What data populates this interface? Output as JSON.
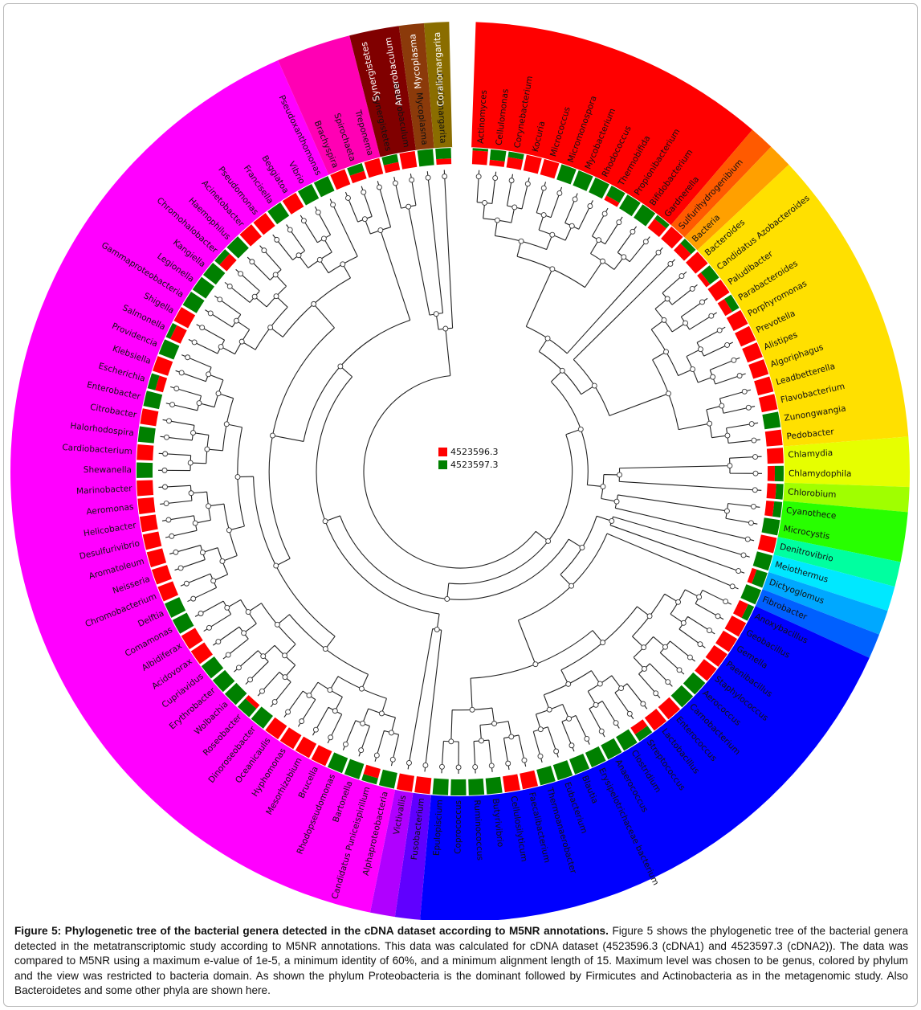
{
  "legend": [
    {
      "id": "4523596.3",
      "color": "#ff0000"
    },
    {
      "id": "4523597.3",
      "color": "#008000"
    }
  ],
  "phyla": [
    {
      "color": "#ff0000",
      "labels": []
    },
    {
      "color": "#ff5a00",
      "labels": []
    },
    {
      "color": "#ffa000",
      "labels": []
    },
    {
      "color": "#ffe000",
      "labels": []
    },
    {
      "color": "#e6ff00",
      "labels": []
    },
    {
      "color": "#a0ff00",
      "labels": []
    },
    {
      "color": "#28ff00",
      "labels": []
    },
    {
      "color": "#00ffa0",
      "labels": []
    },
    {
      "color": "#00e8ff",
      "labels": []
    },
    {
      "color": "#00a8ff",
      "labels": []
    },
    {
      "color": "#0060ff",
      "labels": []
    },
    {
      "color": "#0000ff",
      "labels": []
    },
    {
      "color": "#6000ff",
      "labels": []
    },
    {
      "color": "#b000ff",
      "labels": []
    },
    {
      "color": "#ff00ff",
      "labels": []
    },
    {
      "color": "#ff00b4",
      "labels": []
    },
    {
      "color": "#800000",
      "labels": [
        "Synergistetes",
        "Anaerobaculum"
      ]
    },
    {
      "color": "#8b3a0a",
      "labels": [
        "Mycoplasma"
      ]
    },
    {
      "color": "#8a6d00",
      "labels": [
        "Coraliomargarita"
      ]
    }
  ],
  "genera": [
    {
      "name": "Actinomyces",
      "phylum": 0,
      "s1": 0.85,
      "s2": 0.15
    },
    {
      "name": "Cellulomonas",
      "phylum": 0,
      "s1": 0.35,
      "s2": 0.65
    },
    {
      "name": "Corynebacterium",
      "phylum": 0,
      "s1": 0.65,
      "s2": 0.35
    },
    {
      "name": "Kocuria",
      "phylum": 0,
      "s1": 1.0,
      "s2": 0.0
    },
    {
      "name": "Micrococcus",
      "phylum": 0,
      "s1": 1.0,
      "s2": 0.0
    },
    {
      "name": "Micromonospora",
      "phylum": 0,
      "s1": 0.0,
      "s2": 1.0
    },
    {
      "name": "Mycobacterium",
      "phylum": 0,
      "s1": 0.0,
      "s2": 1.0
    },
    {
      "name": "Rhodococcus",
      "phylum": 0,
      "s1": 0.0,
      "s2": 1.0
    },
    {
      "name": "Thermobifida",
      "phylum": 0,
      "s1": 0.3,
      "s2": 0.7
    },
    {
      "name": "Propionibacterium",
      "phylum": 0,
      "s1": 0.0,
      "s2": 1.0
    },
    {
      "name": "Bifidobacterium",
      "phylum": 0,
      "s1": 0.0,
      "s2": 1.0
    },
    {
      "name": "Gardnerella",
      "phylum": 0,
      "s1": 0.7,
      "s2": 0.3
    },
    {
      "name": "Sulfurihydrogenibium",
      "phylum": 1,
      "s1": 1.0,
      "s2": 0.0
    },
    {
      "name": "Bacteria",
      "phylum": 2,
      "s1": 0.6,
      "s2": 0.4
    },
    {
      "name": "Bacteroides",
      "phylum": 3,
      "s1": 1.0,
      "s2": 0.0
    },
    {
      "name": "Candidatus Azobacteroides",
      "phylum": 3,
      "s1": 0.3,
      "s2": 0.7
    },
    {
      "name": "Paludibacter",
      "phylum": 3,
      "s1": 1.0,
      "s2": 0.0
    },
    {
      "name": "Parabacteroides",
      "phylum": 3,
      "s1": 0.5,
      "s2": 0.5
    },
    {
      "name": "Porphyromonas",
      "phylum": 3,
      "s1": 1.0,
      "s2": 0.0
    },
    {
      "name": "Prevotella",
      "phylum": 3,
      "s1": 1.0,
      "s2": 0.0
    },
    {
      "name": "Alistipes",
      "phylum": 3,
      "s1": 1.0,
      "s2": 0.0
    },
    {
      "name": "Algoriphagus",
      "phylum": 3,
      "s1": 1.0,
      "s2": 0.0
    },
    {
      "name": "Leadbetterella",
      "phylum": 3,
      "s1": 1.0,
      "s2": 0.0
    },
    {
      "name": "Flavobacterium",
      "phylum": 3,
      "s1": 1.0,
      "s2": 0.0
    },
    {
      "name": "Zunongwangia",
      "phylum": 3,
      "s1": 0.0,
      "s2": 1.0
    },
    {
      "name": "Pedobacter",
      "phylum": 3,
      "s1": 1.0,
      "s2": 0.0
    },
    {
      "name": "Chlamydia",
      "phylum": 4,
      "s1": 1.0,
      "s2": 0.0
    },
    {
      "name": "Chlamydophila",
      "phylum": 4,
      "s1": 0.45,
      "s2": 0.55
    },
    {
      "name": "Chlorobium",
      "phylum": 5,
      "s1": 0.55,
      "s2": 0.45
    },
    {
      "name": "Cyanothece",
      "phylum": 6,
      "s1": 0.5,
      "s2": 0.5
    },
    {
      "name": "Microcystis",
      "phylum": 6,
      "s1": 0.0,
      "s2": 1.0
    },
    {
      "name": "Denitrovibrio",
      "phylum": 7,
      "s1": 1.0,
      "s2": 0.0
    },
    {
      "name": "Meiothermus",
      "phylum": 8,
      "s1": 0.0,
      "s2": 1.0
    },
    {
      "name": "Dictyoglomus",
      "phylum": 9,
      "s1": 0.3,
      "s2": 0.7
    },
    {
      "name": "Fibrobacter",
      "phylum": 10,
      "s1": 0.0,
      "s2": 1.0
    },
    {
      "name": "Anoxybacillus",
      "phylum": 11,
      "s1": 0.6,
      "s2": 0.4
    },
    {
      "name": "Geobacillus",
      "phylum": 11,
      "s1": 1.0,
      "s2": 0.0
    },
    {
      "name": "Gemella",
      "phylum": 11,
      "s1": 1.0,
      "s2": 0.0
    },
    {
      "name": "Paenibacillus",
      "phylum": 11,
      "s1": 1.0,
      "s2": 0.0
    },
    {
      "name": "Staphylococcus",
      "phylum": 11,
      "s1": 1.0,
      "s2": 0.0
    },
    {
      "name": "Aerococcus",
      "phylum": 11,
      "s1": 0.0,
      "s2": 1.0
    },
    {
      "name": "Carnobacterium",
      "phylum": 11,
      "s1": 0.0,
      "s2": 1.0
    },
    {
      "name": "Enterococcus",
      "phylum": 11,
      "s1": 1.0,
      "s2": 0.0
    },
    {
      "name": "Lactobacillus",
      "phylum": 11,
      "s1": 1.0,
      "s2": 0.0
    },
    {
      "name": "Streptococcus",
      "phylum": 11,
      "s1": 0.5,
      "s2": 0.5
    },
    {
      "name": "Clostridium",
      "phylum": 11,
      "s1": 0.0,
      "s2": 1.0
    },
    {
      "name": "Anaerococcus",
      "phylum": 11,
      "s1": 0.0,
      "s2": 1.0
    },
    {
      "name": "Erysipelotrichaceae bacterium",
      "phylum": 11,
      "s1": 0.0,
      "s2": 1.0
    },
    {
      "name": "Blautia",
      "phylum": 11,
      "s1": 0.0,
      "s2": 1.0
    },
    {
      "name": "Eubacterium",
      "phylum": 11,
      "s1": 0.0,
      "s2": 1.0
    },
    {
      "name": "Thermoanaerobacter",
      "phylum": 11,
      "s1": 0.0,
      "s2": 1.0
    },
    {
      "name": "Faecalibacterium",
      "phylum": 11,
      "s1": 1.0,
      "s2": 0.0
    },
    {
      "name": "Cellulosilyticum",
      "phylum": 11,
      "s1": 1.0,
      "s2": 0.0
    },
    {
      "name": "Butyrivibrio",
      "phylum": 11,
      "s1": 0.0,
      "s2": 1.0
    },
    {
      "name": "Ruminococcus",
      "phylum": 11,
      "s1": 0.0,
      "s2": 1.0
    },
    {
      "name": "Coprococcus",
      "phylum": 11,
      "s1": 0.0,
      "s2": 1.0
    },
    {
      "name": "Epulopiscium",
      "phylum": 11,
      "s1": 0.0,
      "s2": 1.0
    },
    {
      "name": "Fusobacterium",
      "phylum": 12,
      "s1": 1.0,
      "s2": 0.0
    },
    {
      "name": "Victivallis",
      "phylum": 13,
      "s1": 1.0,
      "s2": 0.0
    },
    {
      "name": "Alphaproteobacteria",
      "phylum": 14,
      "s1": 0.0,
      "s2": 1.0
    },
    {
      "name": "Candidatus Puniceispirillum",
      "phylum": 14,
      "s1": 0.6,
      "s2": 0.4
    },
    {
      "name": "Bartonella",
      "phylum": 14,
      "s1": 0.0,
      "s2": 1.0
    },
    {
      "name": "Rhodopseudomonas",
      "phylum": 14,
      "s1": 0.0,
      "s2": 1.0
    },
    {
      "name": "Brucella",
      "phylum": 14,
      "s1": 1.0,
      "s2": 0.0
    },
    {
      "name": "Mesorhizobium",
      "phylum": 14,
      "s1": 1.0,
      "s2": 0.0
    },
    {
      "name": "Hyphomonas",
      "phylum": 14,
      "s1": 1.0,
      "s2": 0.0
    },
    {
      "name": "Oceanicaulis",
      "phylum": 14,
      "s1": 1.0,
      "s2": 0.0
    },
    {
      "name": "Dinoroseobacter",
      "phylum": 14,
      "s1": 0.0,
      "s2": 1.0
    },
    {
      "name": "Roseobacter",
      "phylum": 14,
      "s1": 0.3,
      "s2": 0.7
    },
    {
      "name": "Wolbachia",
      "phylum": 14,
      "s1": 0.0,
      "s2": 1.0
    },
    {
      "name": "Erythrobacter",
      "phylum": 14,
      "s1": 0.0,
      "s2": 1.0
    },
    {
      "name": "Cupriavidus",
      "phylum": 14,
      "s1": 0.0,
      "s2": 1.0
    },
    {
      "name": "Acidovorax",
      "phylum": 14,
      "s1": 1.0,
      "s2": 0.0
    },
    {
      "name": "Albidiferax",
      "phylum": 14,
      "s1": 1.0,
      "s2": 0.0
    },
    {
      "name": "Comamonas",
      "phylum": 14,
      "s1": 0.0,
      "s2": 1.0
    },
    {
      "name": "Delftia",
      "phylum": 14,
      "s1": 0.0,
      "s2": 1.0
    },
    {
      "name": "Chromobacterium",
      "phylum": 14,
      "s1": 1.0,
      "s2": 0.0
    },
    {
      "name": "Neisseria",
      "phylum": 14,
      "s1": 1.0,
      "s2": 0.0
    },
    {
      "name": "Aromatoleum",
      "phylum": 14,
      "s1": 1.0,
      "s2": 0.0
    },
    {
      "name": "Desulfurivibrio",
      "phylum": 14,
      "s1": 1.0,
      "s2": 0.0
    },
    {
      "name": "Helicobacter",
      "phylum": 14,
      "s1": 1.0,
      "s2": 0.0
    },
    {
      "name": "Aeromonas",
      "phylum": 14,
      "s1": 1.0,
      "s2": 0.0
    },
    {
      "name": "Marinobacter",
      "phylum": 14,
      "s1": 1.0,
      "s2": 0.0
    },
    {
      "name": "Shewanella",
      "phylum": 14,
      "s1": 0.0,
      "s2": 1.0
    },
    {
      "name": "Cardiobacterium",
      "phylum": 14,
      "s1": 1.0,
      "s2": 0.0
    },
    {
      "name": "Halorhodospira",
      "phylum": 14,
      "s1": 0.0,
      "s2": 1.0
    },
    {
      "name": "Citrobacter",
      "phylum": 14,
      "s1": 1.0,
      "s2": 0.0
    },
    {
      "name": "Enterobacter",
      "phylum": 14,
      "s1": 0.0,
      "s2": 1.0
    },
    {
      "name": "Escherichia",
      "phylum": 14,
      "s1": 0.5,
      "s2": 0.5
    },
    {
      "name": "Klebsiella",
      "phylum": 14,
      "s1": 1.0,
      "s2": 0.0
    },
    {
      "name": "Providencia",
      "phylum": 14,
      "s1": 0.0,
      "s2": 1.0
    },
    {
      "name": "Salmonella",
      "phylum": 14,
      "s1": 0.7,
      "s2": 0.3
    },
    {
      "name": "Shigella",
      "phylum": 14,
      "s1": 1.0,
      "s2": 0.0
    },
    {
      "name": "Gammaproteobacteria",
      "phylum": 14,
      "s1": 0.0,
      "s2": 1.0
    },
    {
      "name": "Legionella",
      "phylum": 14,
      "s1": 0.0,
      "s2": 1.0
    },
    {
      "name": "Kangiella",
      "phylum": 14,
      "s1": 0.0,
      "s2": 1.0
    },
    {
      "name": "Chromohalobacter",
      "phylum": 14,
      "s1": 0.6,
      "s2": 0.4
    },
    {
      "name": "Haemophilus",
      "phylum": 14,
      "s1": 0.0,
      "s2": 1.0
    },
    {
      "name": "Acinetobacter",
      "phylum": 14,
      "s1": 1.0,
      "s2": 0.0
    },
    {
      "name": "Pseudomonas",
      "phylum": 14,
      "s1": 1.0,
      "s2": 0.0
    },
    {
      "name": "Francisella",
      "phylum": 14,
      "s1": 0.0,
      "s2": 1.0
    },
    {
      "name": "Beggiatoa",
      "phylum": 14,
      "s1": 1.0,
      "s2": 0.0
    },
    {
      "name": "Vibrio",
      "phylum": 14,
      "s1": 0.0,
      "s2": 1.0
    },
    {
      "name": "Pseudoxanthomonas",
      "phylum": 14,
      "s1": 0.0,
      "s2": 1.0
    },
    {
      "name": "Brachyspira",
      "phylum": 15,
      "s1": 1.0,
      "s2": 0.0
    },
    {
      "name": "Spirochaeta",
      "phylum": 15,
      "s1": 0.5,
      "s2": 0.5
    },
    {
      "name": "Treponema",
      "phylum": 15,
      "s1": 1.0,
      "s2": 0.0
    },
    {
      "name": "Synergistetes",
      "phylum": 16,
      "s1": 0.5,
      "s2": 0.5
    },
    {
      "name": "Anaerobaculum",
      "phylum": 16,
      "s1": 1.0,
      "s2": 0.0
    },
    {
      "name": "Mycoplasma",
      "phylum": 17,
      "s1": 0.0,
      "s2": 1.0
    },
    {
      "name": "Coraliomargarita",
      "phylum": 18,
      "s1": 0.35,
      "s2": 0.65
    }
  ],
  "caption": {
    "title": "Figure 5: Phylogenetic tree of the bacterial genera detected in the cDNA dataset according to M5NR annotations.",
    "body": "Figure 5 shows the phylogenetic tree of the bacterial genera detected in the metatranscriptomic study according to M5NR annotations. This data was calculated for cDNA dataset (4523596.3 (cDNA1) and 4523597.3 (cDNA2)). The data was compared to M5NR using a maximum e-value of 1e-5, a minimum identity of 60%, and a minimum alignment length of 15. Maximum level was chosen to be genus, colored by phylum and the view was restricted to bacteria domain. As shown the phylum Proteobacteria is the dominant followed by Firmicutes and Actinobacteria as in the metagenomic study. Also Bacteroidetes and some other phyla are shown here."
  }
}
